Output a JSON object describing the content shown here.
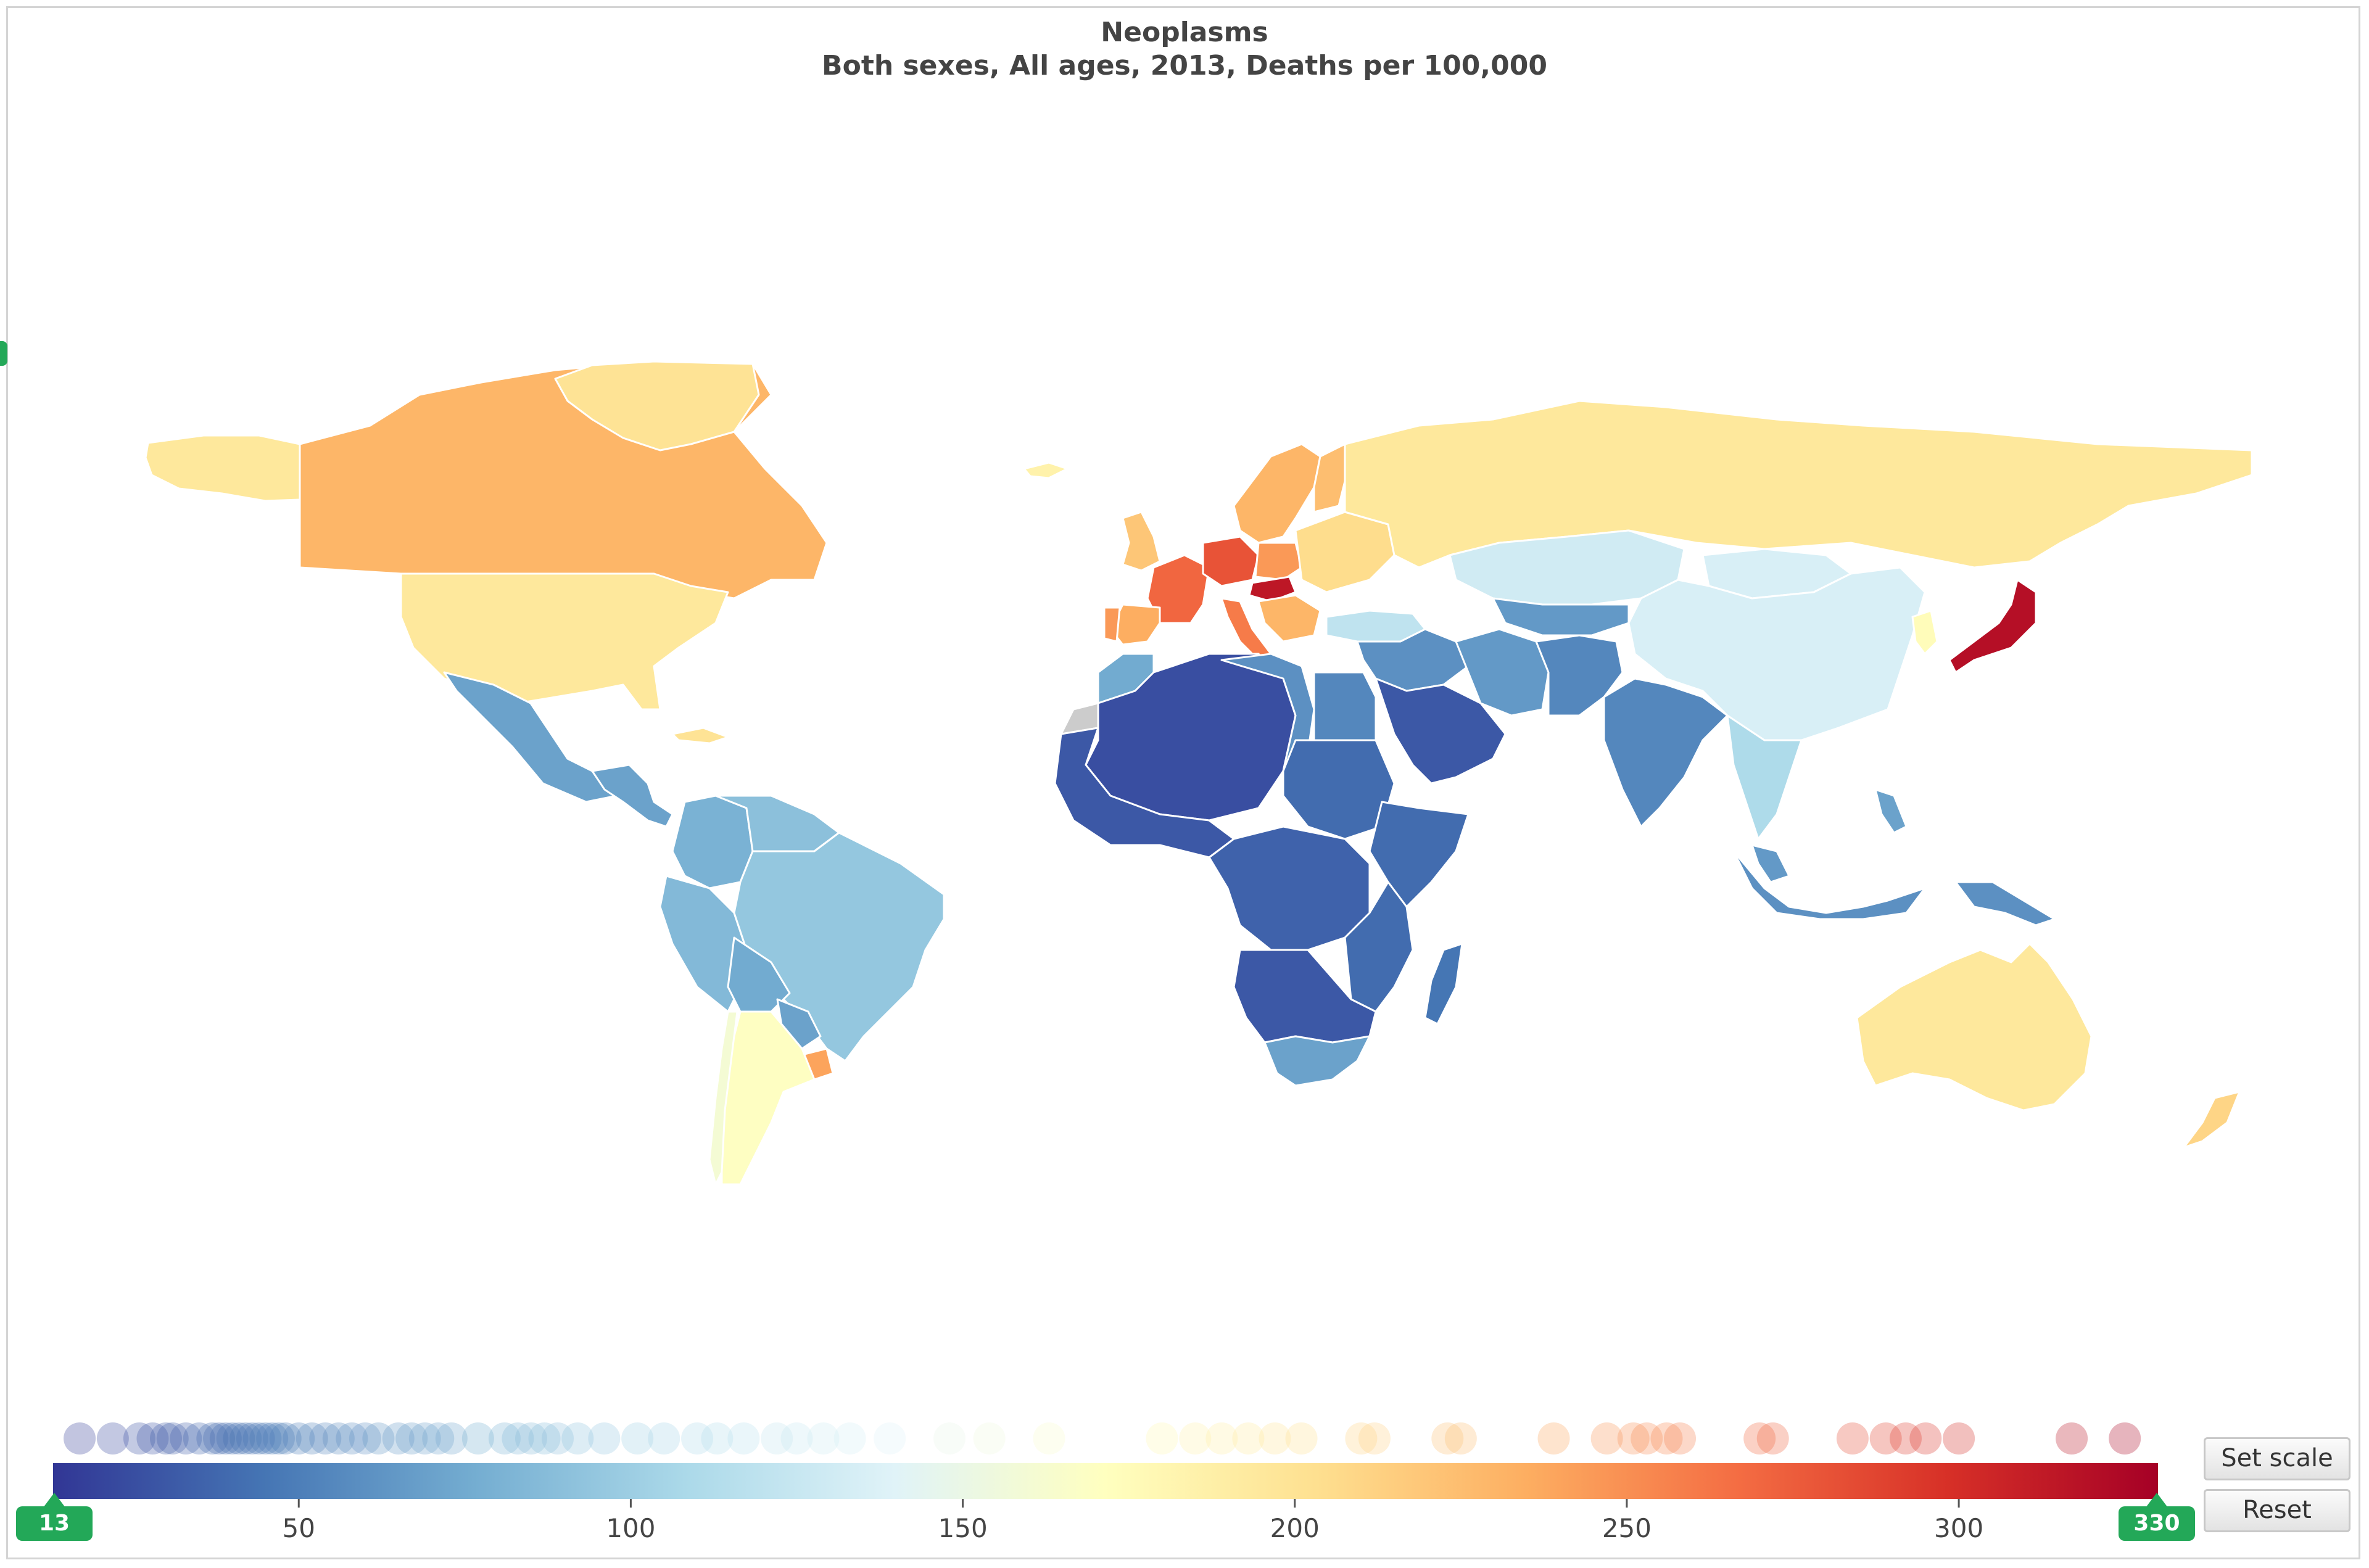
{
  "title": "Neoplasms",
  "subtitle": "Both sexes, All ages, 2013, Deaths per 100,000",
  "colors": {
    "scale": [
      "#313695",
      "#4575b4",
      "#74add1",
      "#abd9e9",
      "#e0f3f8",
      "#ffffbf",
      "#fee090",
      "#fdae61",
      "#f46d43",
      "#d73027",
      "#a50026"
    ],
    "no_data": "#cccccc",
    "handle": "#23a858"
  },
  "chart_data": {
    "type": "choropleth",
    "measure": "Deaths per 100,000",
    "range": [
      13,
      330
    ],
    "axis_ticks": [
      "50",
      "100",
      "150",
      "200",
      "250",
      "300"
    ],
    "handles": {
      "min": "13",
      "max": "330"
    },
    "regions": [
      {
        "name": "Canada",
        "value": 230
      },
      {
        "name": "Alaska",
        "value": 195
      },
      {
        "name": "United States",
        "value": 195
      },
      {
        "name": "Greenland",
        "value": 200
      },
      {
        "name": "Mexico",
        "value": 70
      },
      {
        "name": "Central America",
        "value": 70
      },
      {
        "name": "Cuba",
        "value": 200
      },
      {
        "name": "Colombia",
        "value": 80
      },
      {
        "name": "Venezuela",
        "value": 90
      },
      {
        "name": "Peru",
        "value": 85
      },
      {
        "name": "Brazil",
        "value": 95
      },
      {
        "name": "Bolivia",
        "value": 75
      },
      {
        "name": "Paraguay",
        "value": 70
      },
      {
        "name": "Chile",
        "value": 160
      },
      {
        "name": "Argentina",
        "value": 170
      },
      {
        "name": "Uruguay",
        "value": 240
      },
      {
        "name": "Iceland",
        "value": 185
      },
      {
        "name": "United Kingdom",
        "value": 220
      },
      {
        "name": "Scandinavia",
        "value": 230
      },
      {
        "name": "Finland",
        "value": 225
      },
      {
        "name": "France",
        "value": 270
      },
      {
        "name": "Germany",
        "value": 280
      },
      {
        "name": "Poland",
        "value": 245
      },
      {
        "name": "Hungary",
        "value": 315
      },
      {
        "name": "Italy",
        "value": 260
      },
      {
        "name": "Spain",
        "value": 235
      },
      {
        "name": "Portugal",
        "value": 245
      },
      {
        "name": "Balkans",
        "value": 230
      },
      {
        "name": "Eastern Europe",
        "value": 205
      },
      {
        "name": "Russia",
        "value": 195
      },
      {
        "name": "Turkey",
        "value": 120
      },
      {
        "name": "Kazakhstan",
        "value": 130
      },
      {
        "name": "Central Asia",
        "value": 65
      },
      {
        "name": "Mongolia",
        "value": 135
      },
      {
        "name": "China",
        "value": 135
      },
      {
        "name": "Japan",
        "value": 320
      },
      {
        "name": "Korea",
        "value": 175
      },
      {
        "name": "Middle East",
        "value": 60
      },
      {
        "name": "Arabian Peninsula",
        "value": 30
      },
      {
        "name": "Iran",
        "value": 65
      },
      {
        "name": "Afghanistan and Pakistan",
        "value": 55
      },
      {
        "name": "India",
        "value": 55
      },
      {
        "name": "Southeast Asia",
        "value": 110
      },
      {
        "name": "Malaysia",
        "value": 65
      },
      {
        "name": "Indonesia",
        "value": 60
      },
      {
        "name": "Philippines",
        "value": 70
      },
      {
        "name": "Papua New Guinea",
        "value": 60
      },
      {
        "name": "Australia",
        "value": 195
      },
      {
        "name": "New Zealand",
        "value": 210
      },
      {
        "name": "Morocco",
        "value": 75
      },
      {
        "name": "Western Sahara",
        "value": null
      },
      {
        "name": "West Africa",
        "value": 30
      },
      {
        "name": "Sahel",
        "value": 25
      },
      {
        "name": "Libya",
        "value": 60
      },
      {
        "name": "Egypt",
        "value": 55
      },
      {
        "name": "Sudan",
        "value": 40
      },
      {
        "name": "Horn of Africa",
        "value": 40
      },
      {
        "name": "Central Africa",
        "value": 35
      },
      {
        "name": "East Africa",
        "value": 40
      },
      {
        "name": "Southern Africa",
        "value": 30
      },
      {
        "name": "South Africa",
        "value": 70
      },
      {
        "name": "Madagascar",
        "value": 45
      }
    ],
    "distribution_values": [
      17,
      22,
      26,
      28,
      30,
      31,
      33,
      35,
      37,
      38,
      39,
      40,
      41,
      42,
      43,
      44,
      45,
      46,
      47,
      48,
      50,
      52,
      54,
      56,
      58,
      60,
      62,
      65,
      67,
      69,
      71,
      73,
      77,
      81,
      83,
      85,
      87,
      89,
      92,
      96,
      101,
      105,
      110,
      113,
      117,
      122,
      125,
      129,
      133,
      139,
      148,
      154,
      163,
      180,
      185,
      189,
      193,
      197,
      201,
      210,
      212,
      223,
      225,
      239,
      247,
      251,
      253,
      256,
      258,
      270,
      272,
      284,
      289,
      292,
      295,
      300,
      317,
      325
    ]
  },
  "buttons": {
    "set_scale": "Set scale",
    "reset": "Reset"
  }
}
